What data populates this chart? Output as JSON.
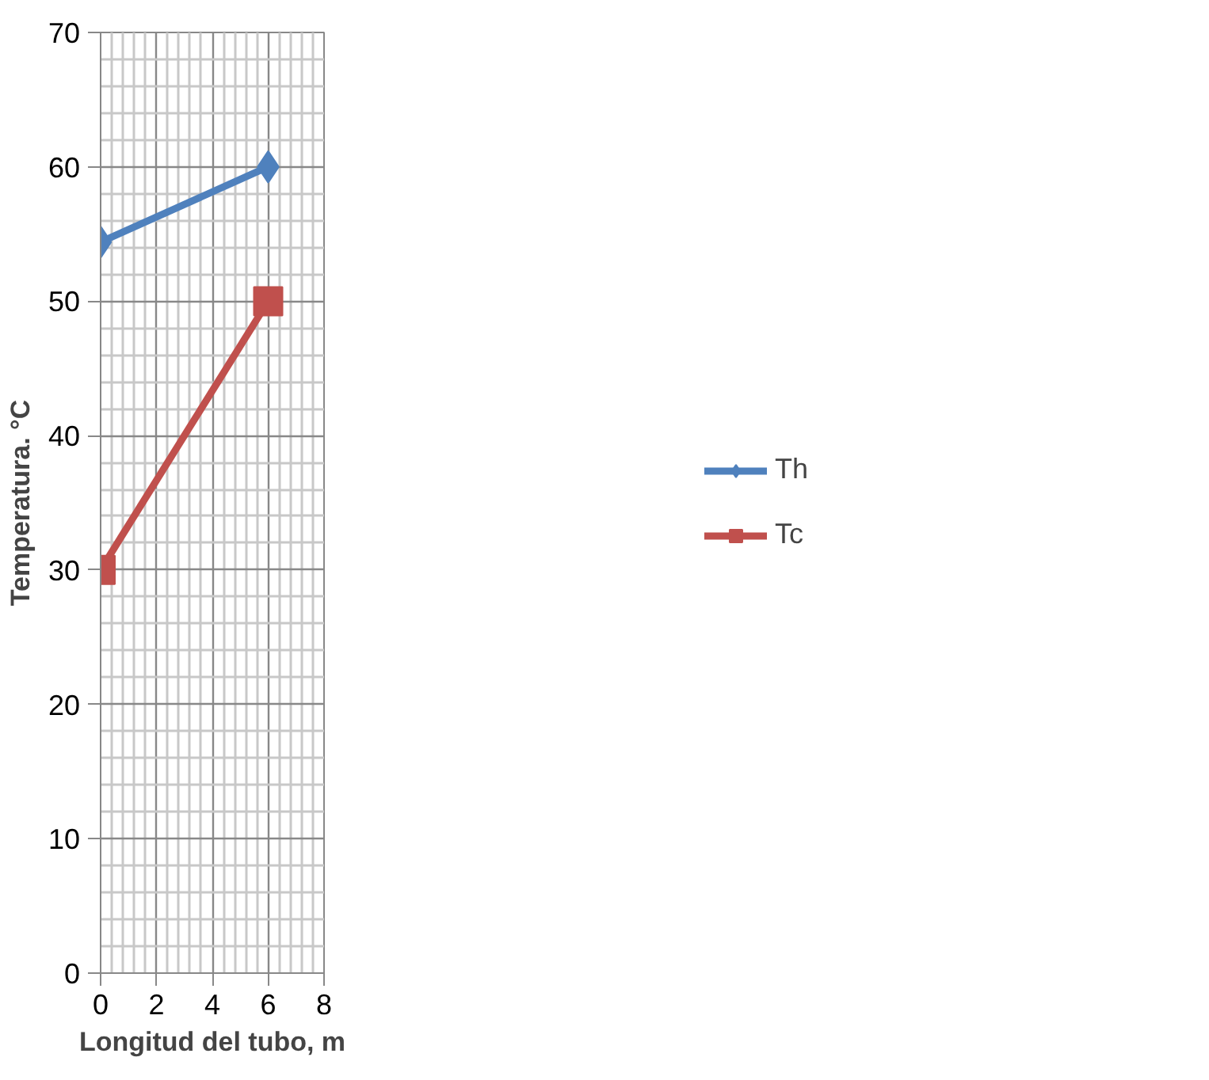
{
  "chart_data": {
    "type": "line",
    "xlabel": "Longitud del tubo, m",
    "ylabel": "Temperatura. °C",
    "x": [
      0,
      6
    ],
    "series": [
      {
        "name": "Th",
        "color": "#4f81bd",
        "values": [
          54.4,
          60
        ],
        "marker": "diamond"
      },
      {
        "name": "Tc",
        "color": "#c0504d",
        "values": [
          30,
          50
        ],
        "marker": "square"
      }
    ],
    "xlim": [
      0,
      8
    ],
    "xticks": [
      0,
      2,
      4,
      6,
      8
    ],
    "ylim": [
      0,
      70
    ],
    "yticks": [
      0,
      10,
      20,
      30,
      40,
      50,
      60,
      70
    ],
    "grid": true,
    "legend": "right"
  }
}
